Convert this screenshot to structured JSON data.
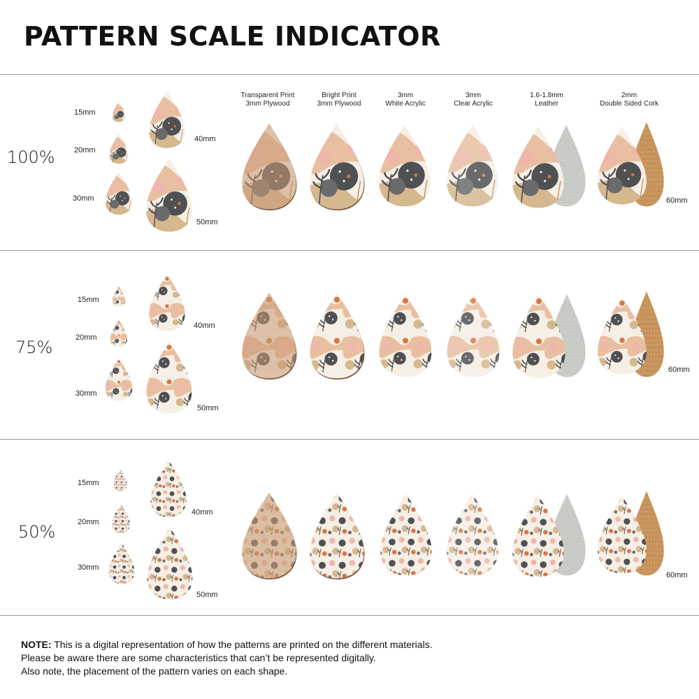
{
  "title": "PATTERN SCALE INDICATOR",
  "sizes": {
    "s15": "15mm",
    "s20": "20mm",
    "s30": "30mm",
    "s40": "40mm",
    "s50": "50mm",
    "s60": "60mm"
  },
  "materials": [
    {
      "line1": "Transparent Print",
      "line2": "3mm Plywood"
    },
    {
      "line1": "Bright Print",
      "line2": "3mm Plywood"
    },
    {
      "line1": "3mm",
      "line2": "White Acrylic"
    },
    {
      "line1": "3mm",
      "line2": "Clear Acrylic"
    },
    {
      "line1": "1.6-1.8mm",
      "line2": "Leather"
    },
    {
      "line1": "2mm",
      "line2": "Double Sided Cork"
    }
  ],
  "sections": [
    {
      "scale": "100%"
    },
    {
      "scale": "75%"
    },
    {
      "scale": "50%"
    }
  ],
  "colors": {
    "peach": "#e8bfa0",
    "blush": "#efb7ab",
    "tan": "#d6b88f",
    "grey": "#5b5b5b",
    "orange": "#d8773f",
    "cream": "#f5efe6",
    "wood": "#c99c78",
    "cork": "#c7955d",
    "suede": "#c9cbc6"
  },
  "note": {
    "label": "NOTE:",
    "line1": "This is a digital representation of how the patterns are printed on the different materials.",
    "line2": "Please be aware there are some characteristics that can’t be represented digitally.",
    "line3": "Also note, the placement of the pattern varies on each shape."
  }
}
